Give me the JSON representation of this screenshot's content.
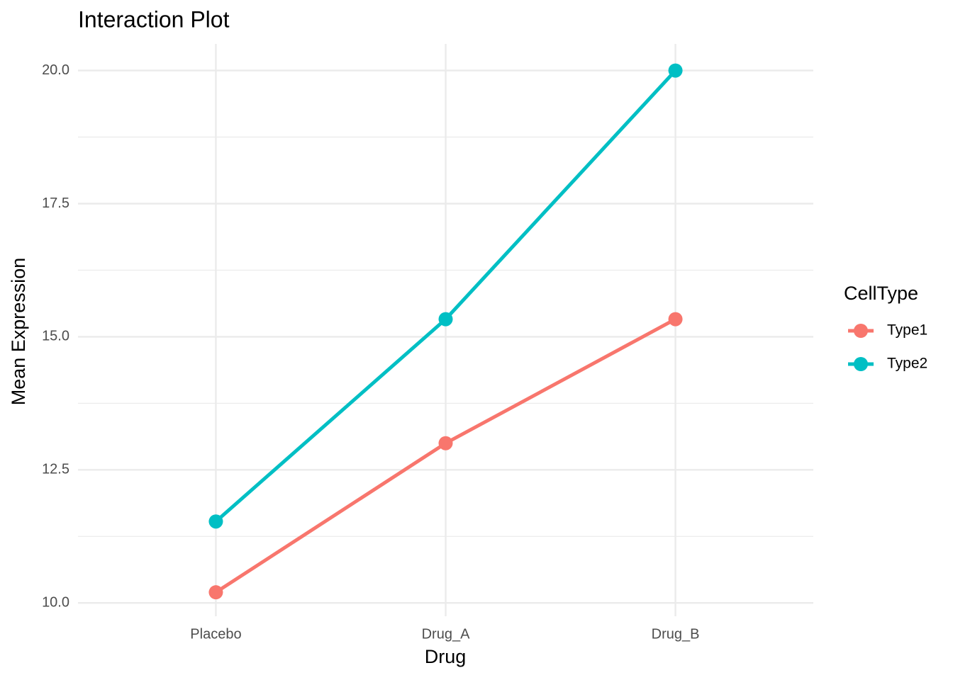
{
  "chart_data": {
    "type": "line",
    "title": "Interaction Plot",
    "x_label": "Drug",
    "y_label": "Mean Expression",
    "categories": [
      "Placebo",
      "Drug_A",
      "Drug_B"
    ],
    "series": [
      {
        "name": "Type1",
        "color": "#F8766D",
        "values": [
          10.2,
          13.0,
          15.33
        ]
      },
      {
        "name": "Type2",
        "color": "#00BFC4",
        "values": [
          11.53,
          15.33,
          20.0
        ]
      }
    ],
    "legend_title": "CellType",
    "legend": "right",
    "ylim": [
      9.75,
      20.5
    ],
    "yticks": [
      {
        "value": 10,
        "label": "10.0"
      },
      12.5,
      {
        "value": 15,
        "label": "15.0"
      },
      17.5,
      {
        "value": 20,
        "label": "20.0"
      }
    ],
    "minor_yticks": [
      11.25,
      13.75,
      16.25,
      18.75
    ],
    "grid": true
  }
}
